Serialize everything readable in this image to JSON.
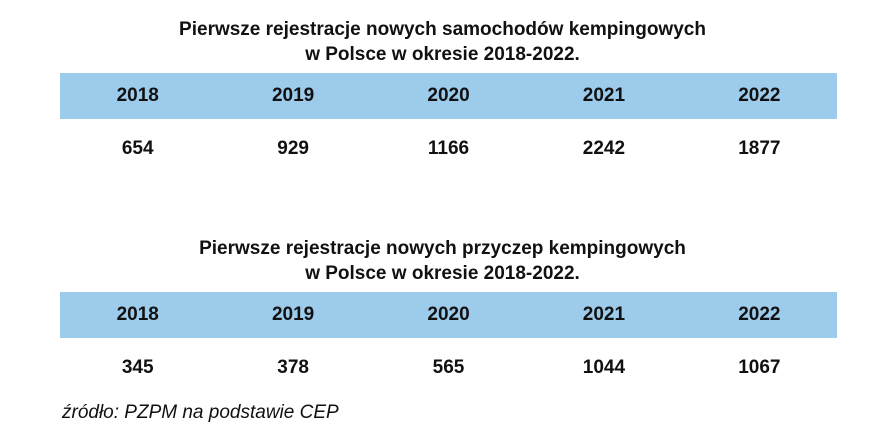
{
  "chart_data": [
    {
      "type": "table",
      "title_lines": [
        "Pierwsze rejestracje nowych samochodów kempingowych",
        "w Polsce w okresie 2018-2022."
      ],
      "categories": [
        "2018",
        "2019",
        "2020",
        "2021",
        "2022"
      ],
      "values": [
        654,
        929,
        1166,
        2242,
        1877
      ]
    },
    {
      "type": "table",
      "title_lines": [
        "Pierwsze rejestracje nowych przyczep kempingowych",
        "w Polsce w okresie 2018-2022."
      ],
      "categories": [
        "2018",
        "2019",
        "2020",
        "2021",
        "2022"
      ],
      "values": [
        345,
        378,
        565,
        1044,
        1067
      ]
    }
  ],
  "source": "źródło: PZPM na podstawie CEP",
  "colors": {
    "header_band": "#9ccbec",
    "text": "#111111",
    "background": "#ffffff"
  }
}
